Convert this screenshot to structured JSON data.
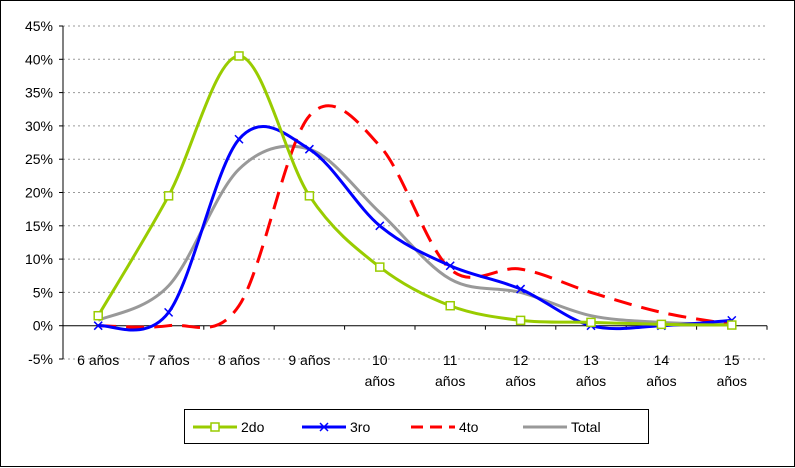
{
  "chart_data": {
    "type": "line",
    "categories": [
      [
        "6 años"
      ],
      [
        "7 años"
      ],
      [
        "8 años"
      ],
      [
        "9 años"
      ],
      [
        "10",
        "años"
      ],
      [
        "11",
        "años"
      ],
      [
        "12",
        "años"
      ],
      [
        "13",
        "años"
      ],
      [
        "14",
        "años"
      ],
      [
        "15",
        "años"
      ]
    ],
    "ylim": [
      -0.05,
      0.45
    ],
    "yticks": [
      "-5%",
      "0%",
      "5%",
      "10%",
      "15%",
      "20%",
      "25%",
      "30%",
      "35%",
      "40%",
      "45%"
    ],
    "grid": true,
    "legend_placement": "bottom",
    "series": [
      {
        "name": "2do",
        "color": "#99cc00",
        "style": "solid",
        "marker": "square",
        "values": [
          0.015,
          0.195,
          0.405,
          0.195,
          0.088,
          0.03,
          0.008,
          0.005,
          0.002,
          0.001
        ]
      },
      {
        "name": "3ro",
        "color": "#0000ff",
        "style": "solid",
        "marker": "x",
        "values": [
          0.0,
          0.02,
          0.28,
          0.265,
          0.15,
          0.09,
          0.055,
          0.0,
          0.0,
          0.008
        ]
      },
      {
        "name": "4to",
        "color": "#ff0000",
        "style": "dashed",
        "marker": "none",
        "values": [
          0.0,
          0.0,
          0.03,
          0.315,
          0.27,
          0.085,
          0.085,
          0.05,
          0.02,
          0.002
        ]
      },
      {
        "name": "Total",
        "color": "#999999",
        "style": "solid",
        "marker": "none",
        "values": [
          0.008,
          0.06,
          0.235,
          0.265,
          0.17,
          0.07,
          0.05,
          0.015,
          0.005,
          0.002
        ]
      }
    ]
  }
}
